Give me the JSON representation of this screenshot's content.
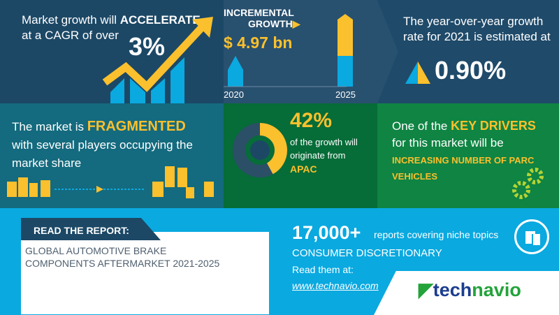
{
  "panel_cagr": {
    "text_before": "Market growth will ",
    "highlight": "ACCELERATE",
    "text_after": "at a CAGR of over",
    "value": "3%"
  },
  "panel_incremental": {
    "title_line1": "INCREMENTAL",
    "title_line2": "GROWTH",
    "value": "$ 4.97 bn",
    "year_start": "2020",
    "year_end": "2025"
  },
  "panel_yoy": {
    "text": "The year-over-year growth rate for 2021 is estimated at",
    "value": "0.90%"
  },
  "panel_market": {
    "text_before": "The market is ",
    "highlight": "FRAGMENTED",
    "text_after": "with several players occupying the market share"
  },
  "panel_region": {
    "value": "42%",
    "text": "of the growth will originate from",
    "region": "APAC",
    "share": 0.42
  },
  "panel_drivers": {
    "text_before": "One of the ",
    "highlight": "KEY DRIVERS",
    "text_after": "for this market will be",
    "driver": "INCREASING NUMBER OF PARC VEHICLES"
  },
  "report": {
    "label": "READ THE REPORT:",
    "title_line1": "GLOBAL AUTOMOTIVE BRAKE",
    "title_line2": "COMPONENTS AFTERMARKET 2021-2025"
  },
  "promo": {
    "count": "17,000+",
    "count_text": "reports covering niche topics",
    "category": "CONSUMER DISCRETIONARY",
    "read_at": "Read them at:",
    "link": "www.technavio.com"
  },
  "brand": {
    "logo_part1": "tech",
    "logo_part2": "navio"
  },
  "colors": {
    "yellow": "#fbc02d",
    "blue": "#0aa9e0",
    "navy": "#1c4866"
  }
}
